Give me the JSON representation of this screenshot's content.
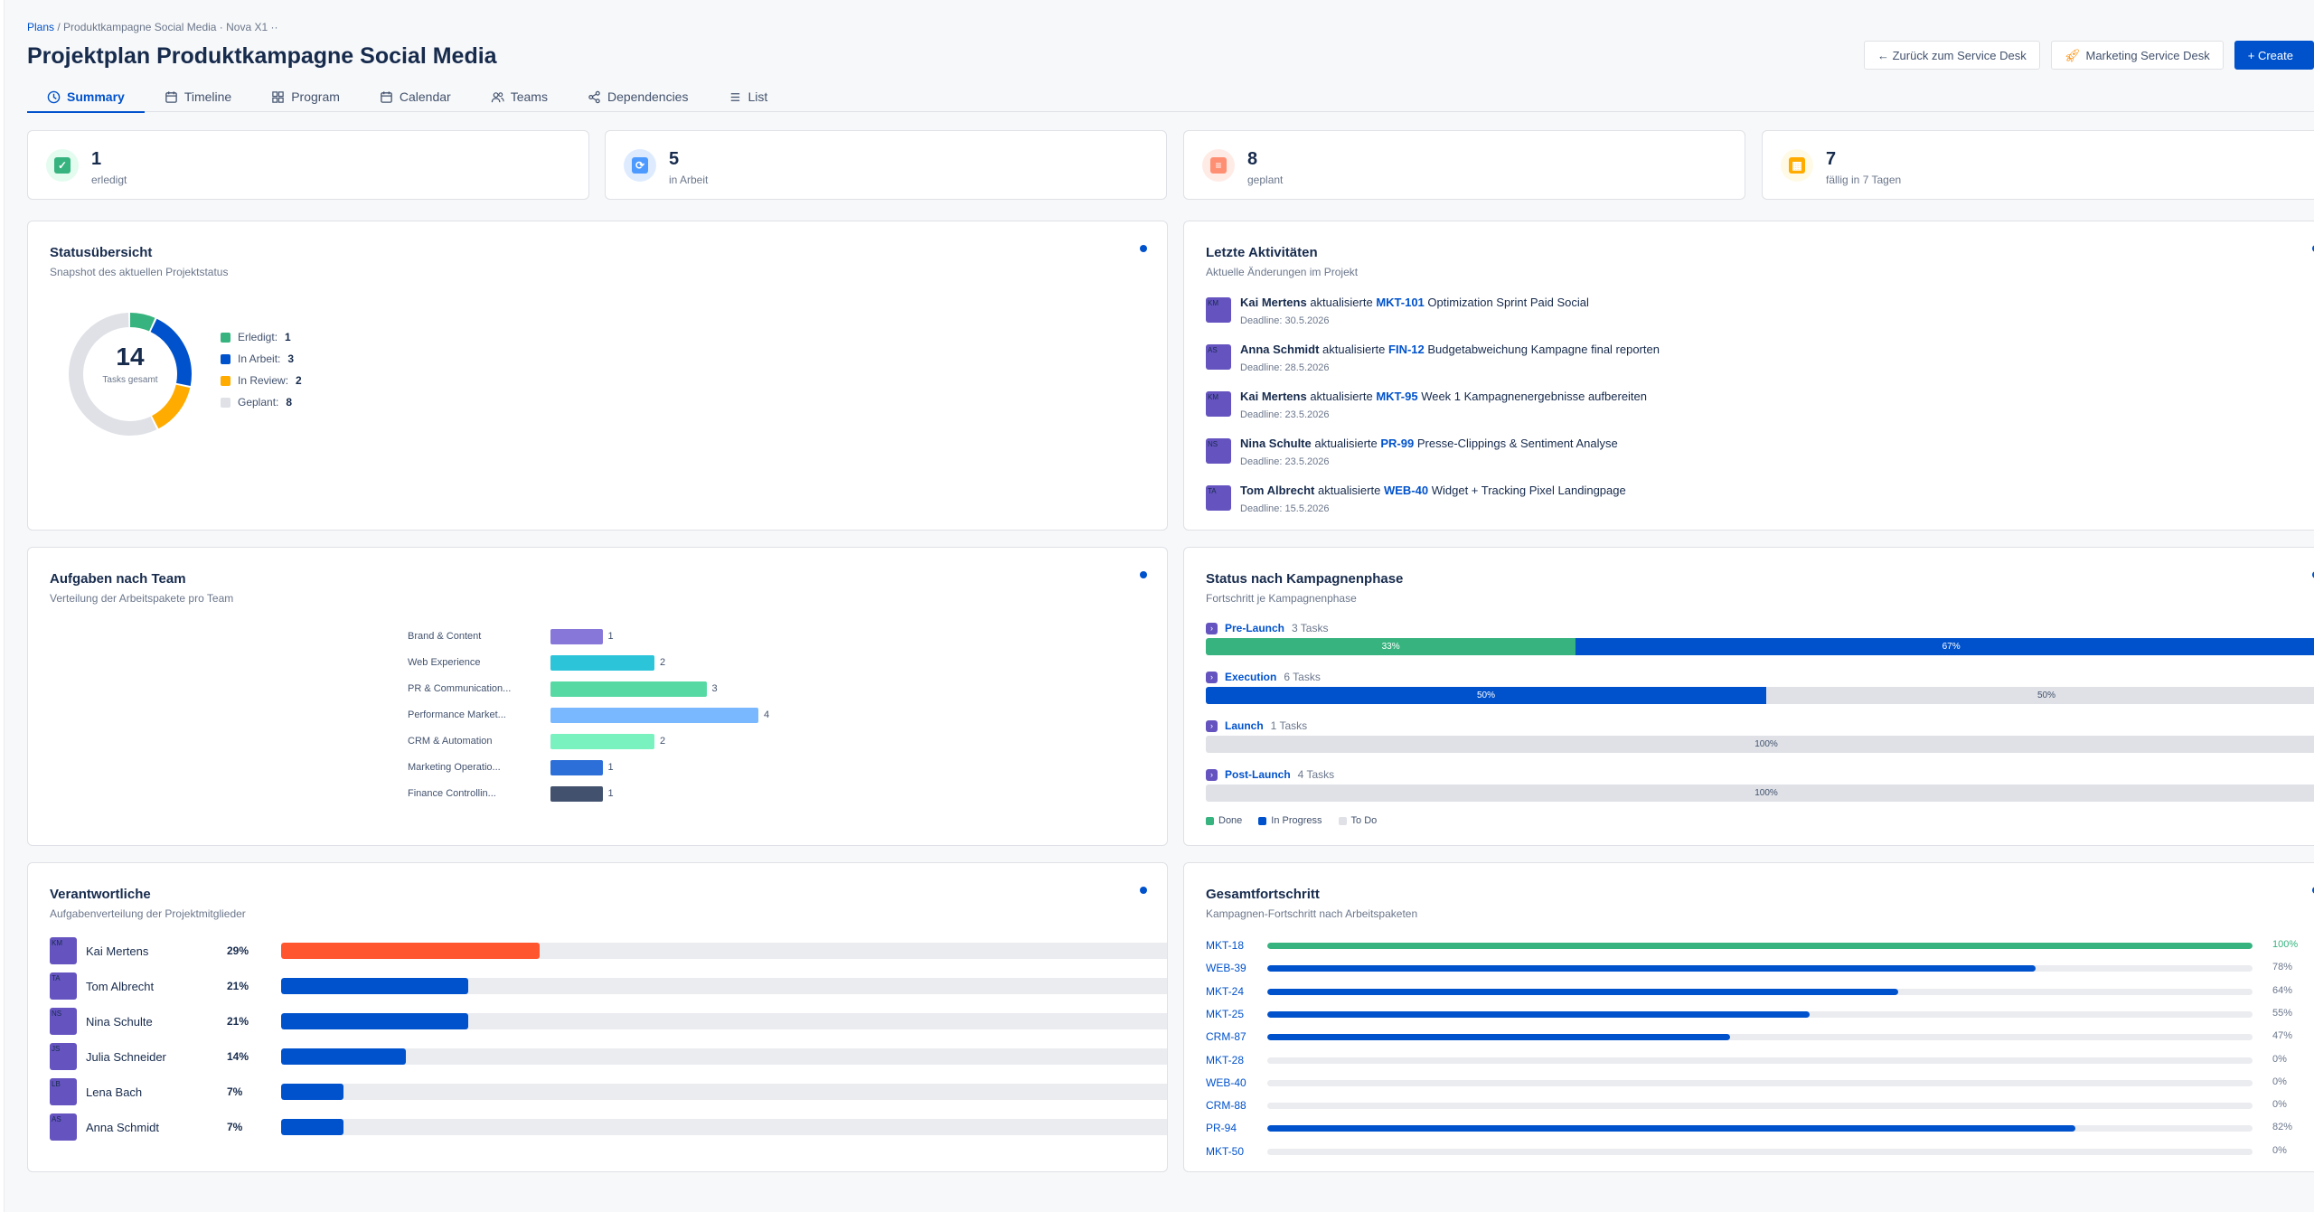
{
  "breadcrumb": {
    "plans": "Plans",
    "sep": " / ",
    "rest": "Produktkampagne Social Media · Nova X1  ··"
  },
  "title": "Projektplan Produktkampagne Social Media",
  "actions": {
    "back": "← Zurück zum Service Desk",
    "marketing": "Marketing Service Desk",
    "create": "+ Create"
  },
  "tabs": [
    {
      "label": "Summary",
      "icon": "clock-icon"
    },
    {
      "label": "Timeline",
      "icon": "calendar-icon"
    },
    {
      "label": "Program",
      "icon": "grid-icon"
    },
    {
      "label": "Calendar",
      "icon": "calendar-icon"
    },
    {
      "label": "Teams",
      "icon": "people-icon"
    },
    {
      "label": "Dependencies",
      "icon": "share-icon"
    },
    {
      "label": "List",
      "icon": "list-icon"
    }
  ],
  "stats": [
    {
      "value": "1",
      "label": "erledigt",
      "color": "#36b37e",
      "bg": "#e3fcef",
      "icon": "check-icon"
    },
    {
      "value": "5",
      "label": "in Arbeit",
      "color": "#4c9aff",
      "bg": "#deebff",
      "icon": "refresh-icon"
    },
    {
      "value": "8",
      "label": "geplant",
      "color": "#ff8f73",
      "bg": "#ffebe6",
      "icon": "clipboard-icon"
    },
    {
      "value": "7",
      "label": "fällig in 7 Tagen",
      "color": "#ffab00",
      "bg": "#fffae6",
      "icon": "calendar-icon"
    }
  ],
  "status_card": {
    "title": "Statusübersicht",
    "subtitle": "Snapshot des aktuellen Projektstatus",
    "total": "14",
    "total_label": "Tasks gesamt",
    "items": [
      {
        "label": "Erledigt:",
        "value": "1",
        "color": "#36b37e"
      },
      {
        "label": "In Arbeit:",
        "value": "3",
        "color": "#0052cc"
      },
      {
        "label": "In Review:",
        "value": "2",
        "color": "#ffab00"
      },
      {
        "label": "Geplant:",
        "value": "8",
        "color": "#dfe1e6"
      }
    ]
  },
  "activity_card": {
    "title": "Letzte Aktivitäten",
    "subtitle": "Aktuelle Änderungen im Projekt",
    "verb": "aktualisierte",
    "items": [
      {
        "initials": "KM",
        "name": "Kai Mertens",
        "key": "MKT-101",
        "text": "Optimization Sprint Paid Social",
        "deadline": "Deadline: 30.5.2026"
      },
      {
        "initials": "AS",
        "name": "Anna Schmidt",
        "key": "FIN-12",
        "text": "Budgetabweichung Kampagne final reporten",
        "deadline": "Deadline: 28.5.2026"
      },
      {
        "initials": "KM",
        "name": "Kai Mertens",
        "key": "MKT-95",
        "text": "Week 1 Kampagnenergebnisse aufbereiten",
        "deadline": "Deadline: 23.5.2026"
      },
      {
        "initials": "NS",
        "name": "Nina Schulte",
        "key": "PR-99",
        "text": "Presse-Clippings & Sentiment Analyse",
        "deadline": "Deadline: 23.5.2026"
      },
      {
        "initials": "TA",
        "name": "Tom Albrecht",
        "key": "WEB-40",
        "text": "Widget + Tracking Pixel Landingpage",
        "deadline": "Deadline: 15.5.2026"
      }
    ]
  },
  "team_card": {
    "title": "Aufgaben nach Team",
    "subtitle": "Verteilung der Arbeitspakete pro Team"
  },
  "chart_data": {
    "type": "bar",
    "orientation": "horizontal",
    "categories": [
      "Brand & Content",
      "Web Experience",
      "PR & Communication...",
      "Performance Market...",
      "CRM & Automation",
      "Marketing Operatio...",
      "Finance Controllin..."
    ],
    "values": [
      1,
      2,
      3,
      4,
      2,
      1,
      1
    ],
    "colors": [
      "#8777d9",
      "#2bc4d9",
      "#57d9a3",
      "#79b8ff",
      "#79f2c0",
      "#2d6fd8",
      "#42526e"
    ],
    "xlim": [
      0,
      4
    ]
  },
  "phase_card": {
    "title": "Status nach Kampagnenphase",
    "subtitle": "Fortschritt je Kampagnenphase",
    "phases": [
      {
        "name": "Pre-Launch",
        "count": "3 Tasks",
        "segments": [
          {
            "label": "33%",
            "value": 33,
            "status": "done"
          },
          {
            "label": "67%",
            "value": 67,
            "status": "progress"
          }
        ]
      },
      {
        "name": "Execution",
        "count": "6 Tasks",
        "segments": [
          {
            "label": "50%",
            "value": 50,
            "status": "progress"
          },
          {
            "label": "50%",
            "value": 50,
            "status": "todo"
          }
        ]
      },
      {
        "name": "Launch",
        "count": "1 Tasks",
        "segments": [
          {
            "label": "100%",
            "value": 100,
            "status": "todo"
          }
        ]
      },
      {
        "name": "Post-Launch",
        "count": "4 Tasks",
        "segments": [
          {
            "label": "100%",
            "value": 100,
            "status": "todo"
          }
        ]
      }
    ],
    "legend": [
      {
        "label": "Done",
        "color": "#36b37e"
      },
      {
        "label": "In Progress",
        "color": "#0052cc"
      },
      {
        "label": "To Do",
        "color": "#dfe1e6"
      }
    ],
    "status_colors": {
      "done": "#36b37e",
      "progress": "#0052cc",
      "todo": "#dfe1e6"
    }
  },
  "people_card": {
    "title": "Verantwortliche",
    "subtitle": "Aufgabenverteilung der Projektmitglieder",
    "people": [
      {
        "initials": "KM",
        "name": "Kai Mertens",
        "pct": "29%",
        "value": 29,
        "color": "#ff5630"
      },
      {
        "initials": "TA",
        "name": "Tom Albrecht",
        "pct": "21%",
        "value": 21,
        "color": "#0052cc"
      },
      {
        "initials": "NS",
        "name": "Nina Schulte",
        "pct": "21%",
        "value": 21,
        "color": "#0052cc"
      },
      {
        "initials": "JS",
        "name": "Julia Schneider",
        "pct": "14%",
        "value": 14,
        "color": "#0052cc"
      },
      {
        "initials": "LB",
        "name": "Lena Bach",
        "pct": "7%",
        "value": 7,
        "color": "#0052cc"
      },
      {
        "initials": "AS",
        "name": "Anna Schmidt",
        "pct": "7%",
        "value": 7,
        "color": "#0052cc"
      }
    ]
  },
  "progress_card": {
    "title": "Gesamtfortschritt",
    "subtitle": "Kampagnen-Fortschritt nach Arbeitspaketen",
    "items": [
      {
        "key": "MKT-18",
        "pct": "100%",
        "value": 100,
        "color": "#36b37e"
      },
      {
        "key": "WEB-39",
        "pct": "78%",
        "value": 78,
        "color": "#0052cc"
      },
      {
        "key": "MKT-24",
        "pct": "64%",
        "value": 64,
        "color": "#0052cc"
      },
      {
        "key": "MKT-25",
        "pct": "55%",
        "value": 55,
        "color": "#0052cc"
      },
      {
        "key": "CRM-87",
        "pct": "47%",
        "value": 47,
        "color": "#0052cc"
      },
      {
        "key": "MKT-28",
        "pct": "0%",
        "value": 0,
        "color": "#0052cc"
      },
      {
        "key": "WEB-40",
        "pct": "0%",
        "value": 0,
        "color": "#0052cc"
      },
      {
        "key": "CRM-88",
        "pct": "0%",
        "value": 0,
        "color": "#0052cc"
      },
      {
        "key": "PR-94",
        "pct": "82%",
        "value": 82,
        "color": "#0052cc"
      },
      {
        "key": "MKT-50",
        "pct": "0%",
        "value": 0,
        "color": "#0052cc"
      }
    ]
  }
}
